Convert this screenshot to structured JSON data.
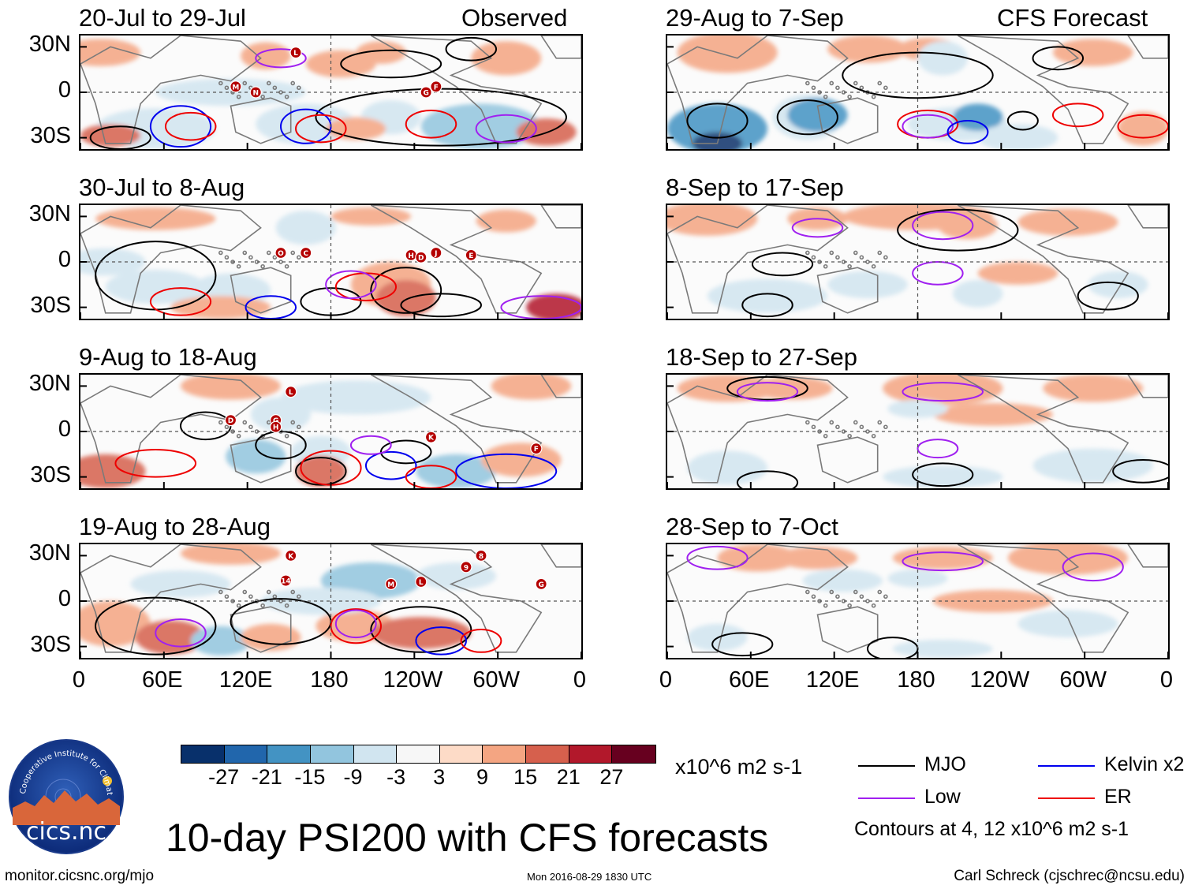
{
  "figure": {
    "title": "10-day PSI200 with CFS forecasts",
    "units": "x10^6 m2 s-1",
    "contour_note": "Contours at 4, 12 x10^6 m2 s-1",
    "url": "monitor.cicsnc.org/mjo",
    "timestamp": "Mon 2016-08-29 1830 UTC",
    "credit": "Carl Schreck (cjschrec@ncsu.edu)",
    "logo_text": "cics.nc",
    "logo_ring_text": "Cooperative Institute for Climate and Satellites",
    "observed_label": "Observed",
    "forecast_label": "CFS Forecast"
  },
  "chart_data": {
    "type": "heatmap",
    "variable": "200-hPa streamfunction anomaly (PSI200)",
    "lat_ticks": [
      "30N",
      "0",
      "30S"
    ],
    "lon_ticks": [
      "0",
      "60E",
      "120E",
      "180",
      "120W",
      "60W",
      "0"
    ],
    "panels_observed": [
      {
        "period": "20-Jul to 29-Jul",
        "storm_markers": [
          "L",
          "M",
          "N",
          "G",
          "F"
        ]
      },
      {
        "period": "30-Jul to 8-Aug",
        "storm_markers": [
          "O",
          "C",
          "H",
          "D",
          "J",
          "E"
        ]
      },
      {
        "period": "9-Aug to 18-Aug",
        "storm_markers": [
          "L",
          "D",
          "G",
          "H",
          "K",
          "F"
        ]
      },
      {
        "period": "19-Aug to 28-Aug",
        "storm_markers": [
          "K",
          "14",
          "M",
          "L",
          "9",
          "8",
          "G"
        ]
      }
    ],
    "panels_forecast": [
      {
        "period": "29-Aug to 7-Sep"
      },
      {
        "period": "8-Sep to 17-Sep"
      },
      {
        "period": "18-Sep to 27-Sep"
      },
      {
        "period": "28-Sep to 7-Oct"
      }
    ],
    "colorbar": {
      "labels": [
        "-27",
        "-21",
        "-15",
        "-9",
        "-3",
        "3",
        "9",
        "15",
        "21",
        "27"
      ],
      "colors": [
        "#08306b",
        "#2166ac",
        "#4393c3",
        "#92c5de",
        "#d1e5f0",
        "#f7f7f7",
        "#fddbc7",
        "#f4a582",
        "#d6604d",
        "#b2182b",
        "#67001f"
      ]
    },
    "legend": [
      {
        "label": "MJO",
        "color": "#000000"
      },
      {
        "label": "Kelvin x2",
        "color": "#0000ee"
      },
      {
        "label": "Low",
        "color": "#a020f0"
      },
      {
        "label": "ER",
        "color": "#ee0000"
      }
    ]
  }
}
